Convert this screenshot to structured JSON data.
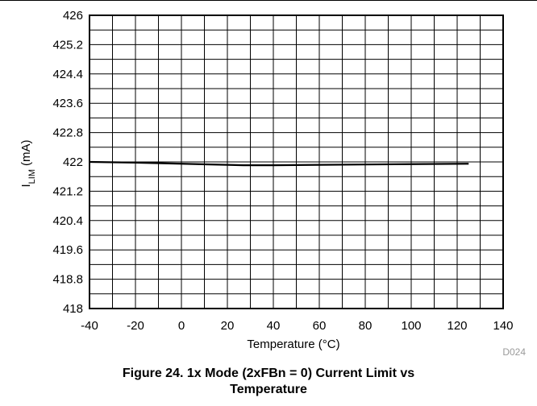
{
  "figure": {
    "code": "D024",
    "caption_line1": "Figure 24. 1x Mode (2xFBn = 0) Current Limit vs",
    "caption_line2": "Temperature"
  },
  "chart_data": {
    "type": "line",
    "title": "",
    "xlabel": "Temperature (°C)",
    "ylabel": "ILIM (mA)",
    "ylabel_main": "I",
    "ylabel_sub": "LIM",
    "ylabel_unit": "(mA)",
    "xlim": [
      -40,
      140
    ],
    "ylim": [
      418,
      426
    ],
    "x_ticks": [
      "-40",
      "-20",
      "0",
      "20",
      "40",
      "60",
      "80",
      "100",
      "120",
      "140"
    ],
    "y_ticks": [
      "418",
      "418.8",
      "419.6",
      "420.4",
      "421.2",
      "422",
      "422.8",
      "423.6",
      "424.4",
      "425.2",
      "426"
    ],
    "x_minor_step": 10,
    "y_minor_step": 0.4,
    "grid": true,
    "series": [
      {
        "color": "#000000",
        "x": [
          -40,
          -20,
          0,
          20,
          27,
          40,
          60,
          80,
          100,
          125
        ],
        "y": [
          422.0,
          421.98,
          421.95,
          421.92,
          421.91,
          421.91,
          421.92,
          421.93,
          421.94,
          421.95
        ]
      }
    ]
  }
}
